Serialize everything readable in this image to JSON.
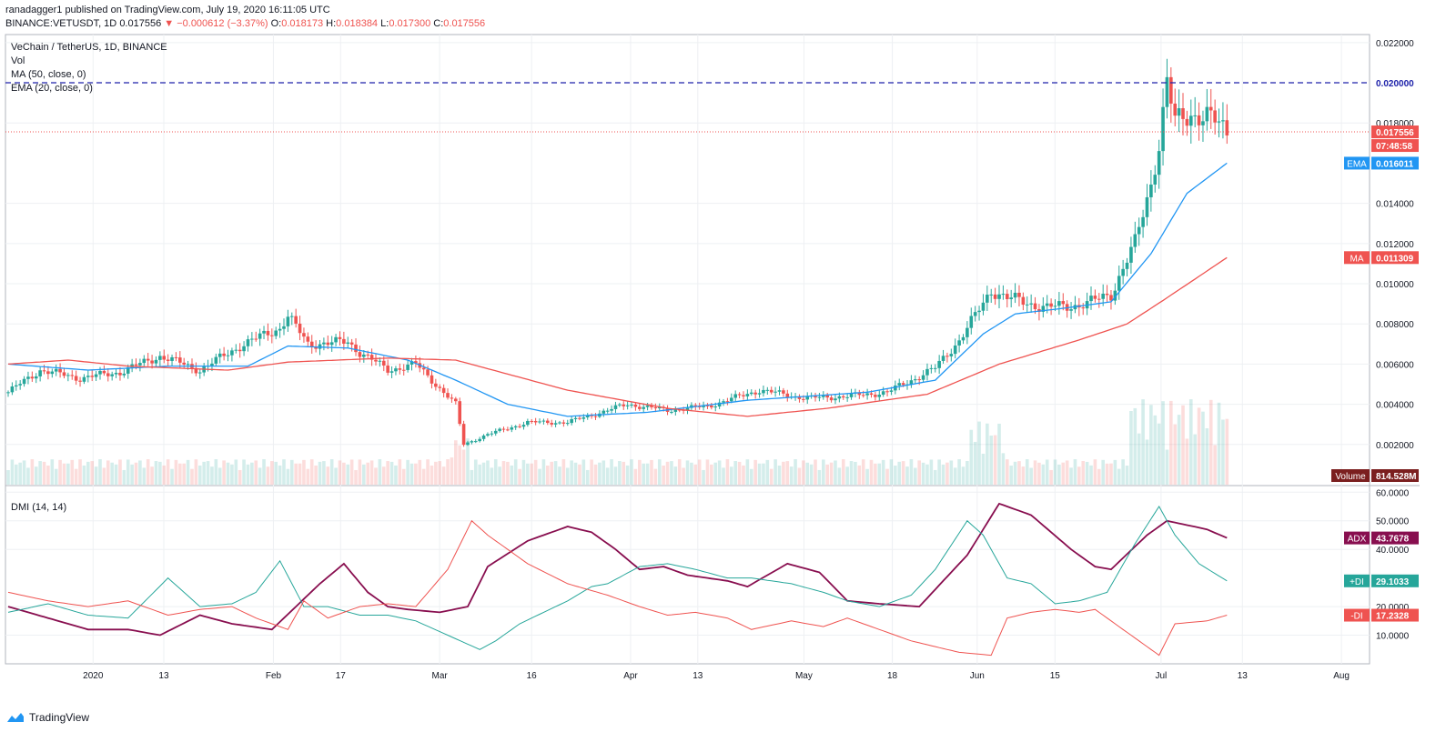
{
  "header": {
    "published": "ranadagger1 published on TradingView.com, July 19, 2020 16:11:05 UTC",
    "symbol": "BINANCE:VETUSDT, 1D",
    "last": "0.017556",
    "change": "−0.000612 (−3.37%)",
    "o_label": "O:",
    "o": "0.018173",
    "h_label": "H:",
    "h": "0.018384",
    "l_label": "L:",
    "l": "0.017300",
    "c_label": "C:",
    "c": "0.017556"
  },
  "legend": {
    "title": "VeChain / TetherUS, 1D, BINANCE",
    "vol": "Vol",
    "ma": "MA (50, close, 0)",
    "ema": "EMA (20, close, 0)",
    "dmi": "DMI (14, 14)"
  },
  "branding": "TradingView",
  "colors": {
    "up": "#26a69a",
    "down": "#ef5350",
    "ema": "#2196f3",
    "ma": "#ef5350",
    "adx": "#880e4f",
    "plus_di": "#26a69a",
    "minus_di": "#ef5350",
    "resistance": "#1e22aa"
  },
  "chart_data": [
    {
      "type": "candlestick",
      "title": "VeChain / TetherUS, 1D, BINANCE",
      "ylim": [
        0.0,
        0.0224
      ],
      "price_ticks": [
        "0.022000",
        "0.018000",
        "0.014000",
        "0.012000",
        "0.010000",
        "0.008000",
        "0.006000",
        "0.004000",
        "0.002000"
      ],
      "x_ticks": [
        "2020",
        "13",
        "Feb",
        "17",
        "Mar",
        "16",
        "Apr",
        "13",
        "May",
        "18",
        "Jun",
        "15",
        "Jul",
        "13",
        "Aug"
      ],
      "resistance_line": 0.02,
      "resistance_label": "0.020000",
      "last_price_label": "0.017556",
      "countdown_label": "07:48:58",
      "ema_label": "EMA",
      "ema_value": "0.016011",
      "ma_label": "MA",
      "ma_value": "0.011309",
      "volume_label": "Volume",
      "volume_value": "814.528M",
      "close_anchors": [
        [
          0,
          0.0046
        ],
        [
          8,
          0.0057
        ],
        [
          18,
          0.0053
        ],
        [
          28,
          0.0056
        ],
        [
          38,
          0.0064
        ],
        [
          48,
          0.0057
        ],
        [
          58,
          0.0069
        ],
        [
          68,
          0.0078
        ],
        [
          70,
          0.0084
        ],
        [
          75,
          0.007
        ],
        [
          85,
          0.0071
        ],
        [
          88,
          0.0066
        ],
        [
          95,
          0.0057
        ],
        [
          102,
          0.006
        ],
        [
          108,
          0.0048
        ],
        [
          112,
          0.004
        ],
        [
          114,
          0.002
        ],
        [
          120,
          0.0025
        ],
        [
          130,
          0.0031
        ],
        [
          140,
          0.0031
        ],
        [
          150,
          0.0037
        ],
        [
          155,
          0.004
        ],
        [
          165,
          0.0037
        ],
        [
          175,
          0.0039
        ],
        [
          188,
          0.0047
        ],
        [
          200,
          0.0043
        ],
        [
          210,
          0.0044
        ],
        [
          220,
          0.0046
        ],
        [
          232,
          0.0058
        ],
        [
          238,
          0.0072
        ],
        [
          244,
          0.009
        ],
        [
          246,
          0.0097
        ],
        [
          250,
          0.0093
        ],
        [
          260,
          0.0088
        ],
        [
          270,
          0.009
        ],
        [
          276,
          0.0095
        ],
        [
          282,
          0.012
        ],
        [
          286,
          0.015
        ],
        [
          288,
          0.017
        ],
        [
          290,
          0.02
        ],
        [
          292,
          0.018
        ],
        [
          296,
          0.0185
        ],
        [
          300,
          0.0183
        ],
        [
          305,
          0.0176
        ]
      ],
      "series": [
        {
          "name": "EMA (20, close, 0)",
          "anchors": [
            [
              0,
              0.006
            ],
            [
              20,
              0.0057
            ],
            [
              40,
              0.0059
            ],
            [
              60,
              0.0059
            ],
            [
              70,
              0.0069
            ],
            [
              85,
              0.0068
            ],
            [
              100,
              0.0062
            ],
            [
              112,
              0.0052
            ],
            [
              125,
              0.004
            ],
            [
              140,
              0.0034
            ],
            [
              160,
              0.0036
            ],
            [
              185,
              0.0042
            ],
            [
              215,
              0.0046
            ],
            [
              232,
              0.0052
            ],
            [
              244,
              0.0075
            ],
            [
              252,
              0.0085
            ],
            [
              265,
              0.0088
            ],
            [
              276,
              0.0091
            ],
            [
              286,
              0.0115
            ],
            [
              295,
              0.0145
            ],
            [
              305,
              0.016
            ]
          ]
        },
        {
          "name": "MA (50, close, 0)",
          "anchors": [
            [
              0,
              0.006
            ],
            [
              15,
              0.0062
            ],
            [
              30,
              0.0059
            ],
            [
              55,
              0.0057
            ],
            [
              70,
              0.0061
            ],
            [
              95,
              0.0063
            ],
            [
              112,
              0.0062
            ],
            [
              140,
              0.0047
            ],
            [
              165,
              0.0038
            ],
            [
              185,
              0.0034
            ],
            [
              205,
              0.0038
            ],
            [
              230,
              0.0045
            ],
            [
              248,
              0.006
            ],
            [
              268,
              0.0072
            ],
            [
              280,
              0.008
            ],
            [
              290,
              0.0093
            ],
            [
              305,
              0.0113
            ]
          ]
        }
      ]
    },
    {
      "type": "line",
      "title": "DMI (14, 14)",
      "ylim": [
        0,
        62
      ],
      "ticks": [
        "60.0000",
        "50.0000",
        "40.0000",
        "20.0000",
        "10.0000"
      ],
      "series": [
        {
          "name": "ADX",
          "label": "ADX",
          "value_label": "43.7678",
          "anchors": [
            [
              0,
              20
            ],
            [
              10,
              16
            ],
            [
              20,
              12
            ],
            [
              30,
              12
            ],
            [
              38,
              10
            ],
            [
              48,
              17
            ],
            [
              56,
              14
            ],
            [
              66,
              12
            ],
            [
              72,
              20
            ],
            [
              78,
              28
            ],
            [
              84,
              35
            ],
            [
              90,
              25
            ],
            [
              95,
              20
            ],
            [
              100,
              19
            ],
            [
              108,
              18
            ],
            [
              115,
              20
            ],
            [
              120,
              34
            ],
            [
              130,
              43
            ],
            [
              140,
              48
            ],
            [
              146,
              46
            ],
            [
              152,
              40
            ],
            [
              158,
              33
            ],
            [
              164,
              34
            ],
            [
              170,
              31
            ],
            [
              180,
              29
            ],
            [
              185,
              27
            ],
            [
              195,
              35
            ],
            [
              203,
              32
            ],
            [
              210,
              22
            ],
            [
              218,
              21
            ],
            [
              228,
              20
            ],
            [
              240,
              38
            ],
            [
              248,
              56
            ],
            [
              256,
              52
            ],
            [
              266,
              40
            ],
            [
              272,
              34
            ],
            [
              276,
              33
            ],
            [
              285,
              45
            ],
            [
              290,
              50
            ],
            [
              300,
              47
            ],
            [
              305,
              44
            ]
          ]
        },
        {
          "name": "+DI",
          "label": "+DI",
          "value_label": "29.1033",
          "anchors": [
            [
              0,
              18
            ],
            [
              10,
              21
            ],
            [
              20,
              17
            ],
            [
              30,
              16
            ],
            [
              40,
              30
            ],
            [
              48,
              20
            ],
            [
              56,
              21
            ],
            [
              62,
              25
            ],
            [
              68,
              36
            ],
            [
              74,
              20
            ],
            [
              80,
              20
            ],
            [
              88,
              17
            ],
            [
              95,
              17
            ],
            [
              102,
              15
            ],
            [
              110,
              10
            ],
            [
              118,
              5
            ],
            [
              122,
              8
            ],
            [
              128,
              14
            ],
            [
              140,
              22
            ],
            [
              146,
              27
            ],
            [
              150,
              28
            ],
            [
              158,
              34
            ],
            [
              165,
              35
            ],
            [
              172,
              33
            ],
            [
              180,
              30
            ],
            [
              186,
              30
            ],
            [
              196,
              28
            ],
            [
              204,
              25
            ],
            [
              210,
              22
            ],
            [
              218,
              20
            ],
            [
              226,
              24
            ],
            [
              232,
              33
            ],
            [
              240,
              50
            ],
            [
              244,
              45
            ],
            [
              250,
              30
            ],
            [
              256,
              28
            ],
            [
              262,
              21
            ],
            [
              268,
              22
            ],
            [
              275,
              25
            ],
            [
              282,
              42
            ],
            [
              288,
              55
            ],
            [
              292,
              45
            ],
            [
              298,
              35
            ],
            [
              305,
              29
            ]
          ]
        },
        {
          "name": "-DI",
          "label": "-DI",
          "value_label": "17.2328",
          "anchors": [
            [
              0,
              25
            ],
            [
              10,
              22
            ],
            [
              20,
              20
            ],
            [
              30,
              22
            ],
            [
              40,
              17
            ],
            [
              48,
              19
            ],
            [
              56,
              20
            ],
            [
              62,
              16
            ],
            [
              70,
              12
            ],
            [
              74,
              22
            ],
            [
              80,
              16
            ],
            [
              88,
              20
            ],
            [
              95,
              21
            ],
            [
              102,
              20
            ],
            [
              110,
              33
            ],
            [
              116,
              50
            ],
            [
              120,
              45
            ],
            [
              130,
              35
            ],
            [
              140,
              28
            ],
            [
              150,
              24
            ],
            [
              158,
              20
            ],
            [
              165,
              17
            ],
            [
              172,
              18
            ],
            [
              180,
              16
            ],
            [
              186,
              12
            ],
            [
              196,
              15
            ],
            [
              204,
              13
            ],
            [
              210,
              16
            ],
            [
              218,
              12
            ],
            [
              226,
              8
            ],
            [
              232,
              6
            ],
            [
              238,
              4
            ],
            [
              246,
              3
            ],
            [
              250,
              16
            ],
            [
              256,
              18
            ],
            [
              262,
              19
            ],
            [
              268,
              18
            ],
            [
              272,
              19
            ],
            [
              278,
              13
            ],
            [
              284,
              7
            ],
            [
              288,
              3
            ],
            [
              292,
              14
            ],
            [
              300,
              15
            ],
            [
              305,
              17
            ]
          ]
        }
      ]
    }
  ]
}
